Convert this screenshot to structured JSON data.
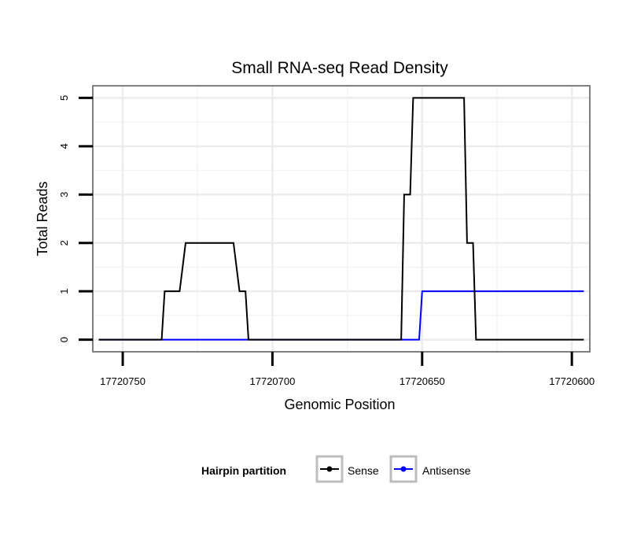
{
  "chart_data": {
    "type": "line",
    "title": "Small RNA-seq Read Density",
    "xlabel": "Genomic Position",
    "ylabel": "Total Reads",
    "x_reversed": true,
    "xlim": [
      17720760,
      17720594
    ],
    "ylim": [
      -0.25,
      5.25
    ],
    "x_ticks": [
      17720750,
      17720700,
      17720650,
      17720600
    ],
    "x_tick_labels": [
      "17720750",
      "17720700",
      "17720650",
      "17720600"
    ],
    "y_ticks": [
      0,
      1,
      2,
      3,
      4,
      5
    ],
    "y_tick_labels": [
      "0",
      "1",
      "2",
      "3",
      "4",
      "5"
    ],
    "grid": true,
    "legend": {
      "title": "Hairpin partition",
      "position": "bottom"
    },
    "series": [
      {
        "name": "Sense",
        "color": "#000000",
        "x": [
          17720758,
          17720737,
          17720736,
          17720731,
          17720729,
          17720713,
          17720711,
          17720709,
          17720708,
          17720657,
          17720656,
          17720654,
          17720653,
          17720636,
          17720635,
          17720633,
          17720632,
          17720596
        ],
        "y": [
          0,
          0,
          1,
          1,
          2,
          2,
          1,
          1,
          0,
          0,
          3,
          3,
          5,
          5,
          2,
          2,
          0,
          0
        ]
      },
      {
        "name": "Antisense",
        "color": "#0000ff",
        "x": [
          17720758,
          17720651,
          17720650,
          17720633,
          17720632,
          17720596
        ],
        "y": [
          0,
          0,
          1,
          1,
          1,
          1
        ]
      }
    ]
  }
}
